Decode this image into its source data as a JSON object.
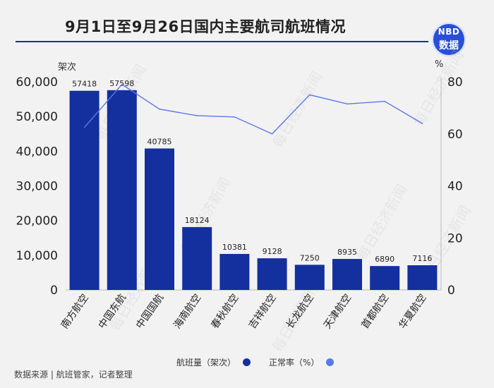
{
  "title": "9月1日至9月26日国内主要航司航班情况",
  "logo": {
    "line1": "NBD",
    "line2": "数据"
  },
  "source": "数据来源 | 航班管家，记者整理",
  "watermark_text": "每日经济新闻",
  "colors": {
    "bar": "#13309e",
    "line": "#5a78e6",
    "title_rule": "#1f2f8a",
    "logo": "#2a4fd6"
  },
  "chart_data": {
    "type": "bar+line",
    "categories": [
      "南方航空",
      "中国东航",
      "中国国航",
      "海南航空",
      "春秋航空",
      "吉祥航空",
      "长龙航空",
      "天津航空",
      "首都航空",
      "华夏航空"
    ],
    "series": [
      {
        "name": "航班量（架次）",
        "type": "bar",
        "axis": "left",
        "values": [
          57418,
          57598,
          40785,
          18124,
          10381,
          9128,
          7250,
          8935,
          6890,
          7116
        ]
      },
      {
        "name": "正常率（%）",
        "type": "line",
        "axis": "right",
        "values": [
          62.5,
          79,
          69.5,
          67,
          66.5,
          60,
          75,
          71.5,
          72.5,
          64
        ]
      }
    ],
    "left_axis": {
      "unit": "架次",
      "range": [
        0,
        60000
      ],
      "ticks": [
        "0",
        "10,000",
        "20,000",
        "30,000",
        "40,000",
        "50,000",
        "60,000"
      ]
    },
    "right_axis": {
      "unit": "%",
      "range": [
        0,
        80
      ],
      "ticks": [
        "0",
        "20",
        "40",
        "60",
        "80"
      ]
    },
    "bar_labels": [
      "57418",
      "57598",
      "40785",
      "18124",
      "10381",
      "9128",
      "7250",
      "8935",
      "6890",
      "7116"
    ],
    "legend": [
      {
        "label": "航班量（架次）",
        "color": "#13309e"
      },
      {
        "label": "正常率（%）",
        "color": "#5a78e6"
      }
    ],
    "legend_position": "bottom",
    "grid": false
  }
}
